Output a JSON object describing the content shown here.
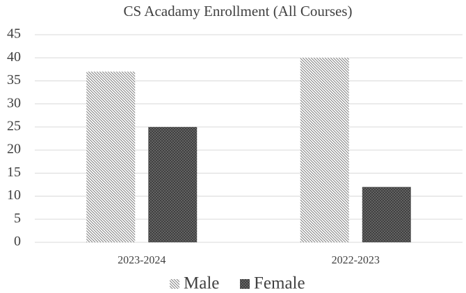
{
  "chart_data": {
    "type": "bar",
    "title": "CS Acadamy Enrollment (All Courses)",
    "categories": [
      "2023-2024",
      "2022-2023"
    ],
    "series": [
      {
        "name": "Male",
        "color": "#7f7f7f",
        "values": [
          37,
          40
        ]
      },
      {
        "name": "Female",
        "color": "#404040",
        "values": [
          25,
          12
        ]
      }
    ],
    "ylim": [
      0,
      45
    ],
    "yticks": [
      0,
      5,
      10,
      15,
      20,
      25,
      30,
      35,
      40,
      45
    ],
    "grid": true,
    "legend": "bottom"
  }
}
